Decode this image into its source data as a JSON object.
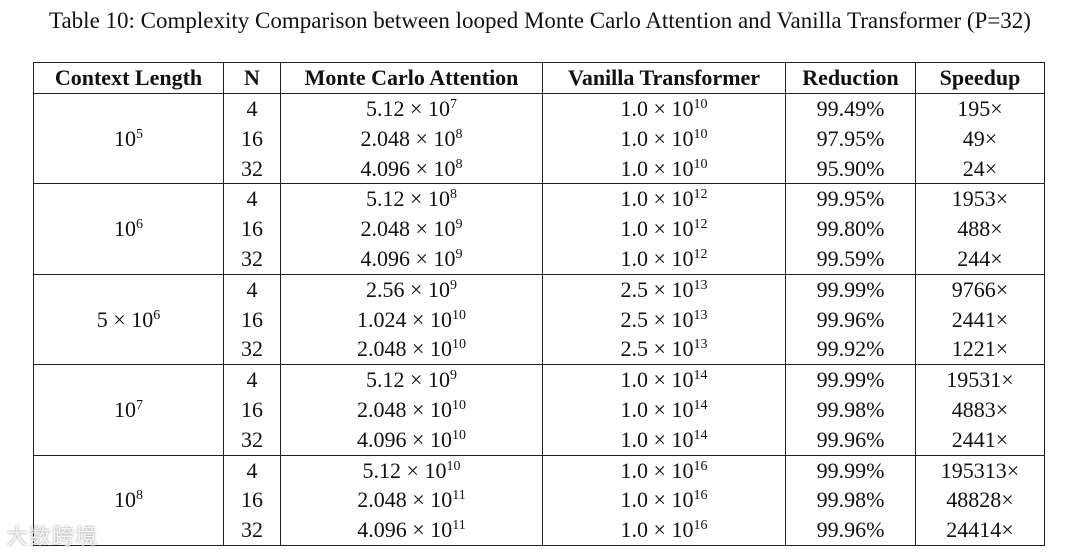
{
  "caption": "Table 10: Complexity Comparison between looped Monte Carlo Attention and Vanilla Transformer (P=32)",
  "headers": [
    "Context Length",
    "N",
    "Monte Carlo Attention",
    "Vanilla Transformer",
    "Reduction",
    "Speedup"
  ],
  "groups": [
    {
      "context": {
        "base": "10",
        "exp": "5",
        "prefix": ""
      },
      "rows": [
        {
          "n": "4",
          "mca": {
            "m": "5.12 × 10",
            "e": "7"
          },
          "vt": {
            "m": "1.0 × 10",
            "e": "10"
          },
          "reduction": "99.49%",
          "speedup": "195×"
        },
        {
          "n": "16",
          "mca": {
            "m": "2.048 × 10",
            "e": "8"
          },
          "vt": {
            "m": "1.0 × 10",
            "e": "10"
          },
          "reduction": "97.95%",
          "speedup": "49×"
        },
        {
          "n": "32",
          "mca": {
            "m": "4.096 × 10",
            "e": "8"
          },
          "vt": {
            "m": "1.0 × 10",
            "e": "10"
          },
          "reduction": "95.90%",
          "speedup": "24×"
        }
      ]
    },
    {
      "context": {
        "base": "10",
        "exp": "6",
        "prefix": ""
      },
      "rows": [
        {
          "n": "4",
          "mca": {
            "m": "5.12 × 10",
            "e": "8"
          },
          "vt": {
            "m": "1.0 × 10",
            "e": "12"
          },
          "reduction": "99.95%",
          "speedup": "1953×"
        },
        {
          "n": "16",
          "mca": {
            "m": "2.048 × 10",
            "e": "9"
          },
          "vt": {
            "m": "1.0 × 10",
            "e": "12"
          },
          "reduction": "99.80%",
          "speedup": "488×"
        },
        {
          "n": "32",
          "mca": {
            "m": "4.096 × 10",
            "e": "9"
          },
          "vt": {
            "m": "1.0 × 10",
            "e": "12"
          },
          "reduction": "99.59%",
          "speedup": "244×"
        }
      ]
    },
    {
      "context": {
        "base": "10",
        "exp": "6",
        "prefix": "5 × "
      },
      "rows": [
        {
          "n": "4",
          "mca": {
            "m": "2.56 × 10",
            "e": "9"
          },
          "vt": {
            "m": "2.5 × 10",
            "e": "13"
          },
          "reduction": "99.99%",
          "speedup": "9766×"
        },
        {
          "n": "16",
          "mca": {
            "m": "1.024 × 10",
            "e": "10"
          },
          "vt": {
            "m": "2.5 × 10",
            "e": "13"
          },
          "reduction": "99.96%",
          "speedup": "2441×"
        },
        {
          "n": "32",
          "mca": {
            "m": "2.048 × 10",
            "e": "10"
          },
          "vt": {
            "m": "2.5 × 10",
            "e": "13"
          },
          "reduction": "99.92%",
          "speedup": "1221×"
        }
      ]
    },
    {
      "context": {
        "base": "10",
        "exp": "7",
        "prefix": ""
      },
      "rows": [
        {
          "n": "4",
          "mca": {
            "m": "5.12 × 10",
            "e": "9"
          },
          "vt": {
            "m": "1.0 × 10",
            "e": "14"
          },
          "reduction": "99.99%",
          "speedup": "19531×"
        },
        {
          "n": "16",
          "mca": {
            "m": "2.048 × 10",
            "e": "10"
          },
          "vt": {
            "m": "1.0 × 10",
            "e": "14"
          },
          "reduction": "99.98%",
          "speedup": "4883×"
        },
        {
          "n": "32",
          "mca": {
            "m": "4.096 × 10",
            "e": "10"
          },
          "vt": {
            "m": "1.0 × 10",
            "e": "14"
          },
          "reduction": "99.96%",
          "speedup": "2441×"
        }
      ]
    },
    {
      "context": {
        "base": "10",
        "exp": "8",
        "prefix": ""
      },
      "rows": [
        {
          "n": "4",
          "mca": {
            "m": "5.12 × 10",
            "e": "10"
          },
          "vt": {
            "m": "1.0 × 10",
            "e": "16"
          },
          "reduction": "99.99%",
          "speedup": "195313×"
        },
        {
          "n": "16",
          "mca": {
            "m": "2.048 × 10",
            "e": "11"
          },
          "vt": {
            "m": "1.0 × 10",
            "e": "16"
          },
          "reduction": "99.98%",
          "speedup": "48828×"
        },
        {
          "n": "32",
          "mca": {
            "m": "4.096 × 10",
            "e": "11"
          },
          "vt": {
            "m": "1.0 × 10",
            "e": "16"
          },
          "reduction": "99.96%",
          "speedup": "24414×"
        }
      ]
    }
  ],
  "watermark": "大数跨境"
}
